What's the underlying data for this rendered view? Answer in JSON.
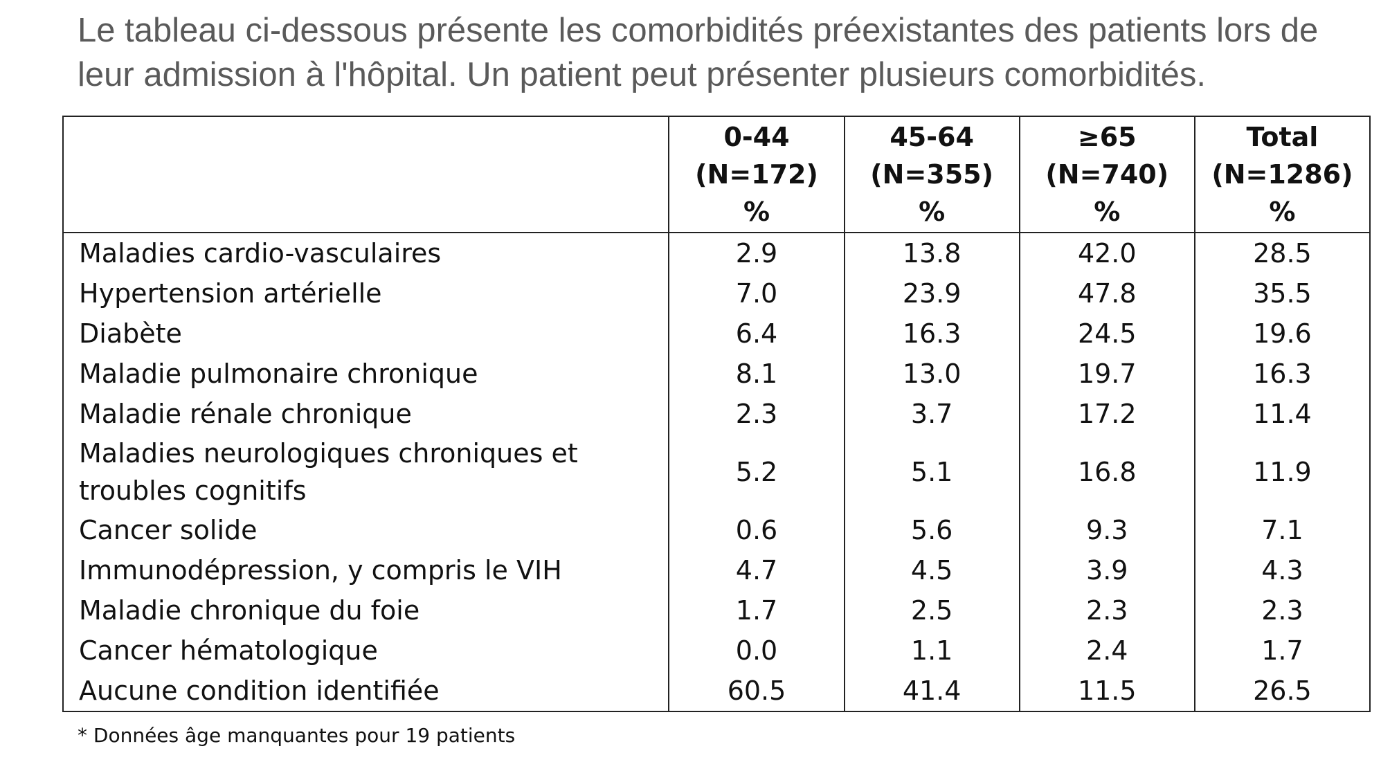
{
  "intro": "Le tableau ci-dessous présente les comorbidités préexistantes des patients lors de leur admission à l'hôpital. Un patient peut présenter plusieurs comorbidités.",
  "table": {
    "columns": [
      {
        "range": "0-44",
        "n": "(N=172)",
        "unit": "%"
      },
      {
        "range": "45-64",
        "n": "(N=355)",
        "unit": "%"
      },
      {
        "range": "≥65",
        "n": "(N=740)",
        "unit": "%"
      },
      {
        "range": "Total",
        "n": "(N=1286)",
        "unit": "%"
      }
    ],
    "rows": [
      {
        "label": "Maladies cardio-vasculaires",
        "values": [
          "2.9",
          "13.8",
          "42.0",
          "28.5"
        ]
      },
      {
        "label": "Hypertension artérielle",
        "values": [
          "7.0",
          "23.9",
          "47.8",
          "35.5"
        ]
      },
      {
        "label": "Diabète",
        "values": [
          "6.4",
          "16.3",
          "24.5",
          "19.6"
        ]
      },
      {
        "label": "Maladie pulmonaire chronique",
        "values": [
          "8.1",
          "13.0",
          "19.7",
          "16.3"
        ]
      },
      {
        "label": "Maladie rénale chronique",
        "values": [
          "2.3",
          "3.7",
          "17.2",
          "11.4"
        ]
      },
      {
        "label": "Maladies neurologiques chroniques et troubles cognitifs",
        "values": [
          "5.2",
          "5.1",
          "16.8",
          "11.9"
        ]
      },
      {
        "label": "Cancer solide",
        "values": [
          "0.6",
          "5.6",
          "9.3",
          "7.1"
        ]
      },
      {
        "label": "Immunodépression, y compris le VIH",
        "values": [
          "4.7",
          "4.5",
          "3.9",
          "4.3"
        ]
      },
      {
        "label": "Maladie chronique du foie",
        "values": [
          "1.7",
          "2.5",
          "2.3",
          "2.3"
        ]
      },
      {
        "label": "Cancer hématologique",
        "values": [
          "0.0",
          "1.1",
          "2.4",
          "1.7"
        ]
      },
      {
        "label": "Aucune condition identifiée",
        "values": [
          "60.5",
          "41.4",
          "11.5",
          "26.5"
        ]
      }
    ]
  },
  "footnote": "* Données âge manquantes pour 19 patients"
}
